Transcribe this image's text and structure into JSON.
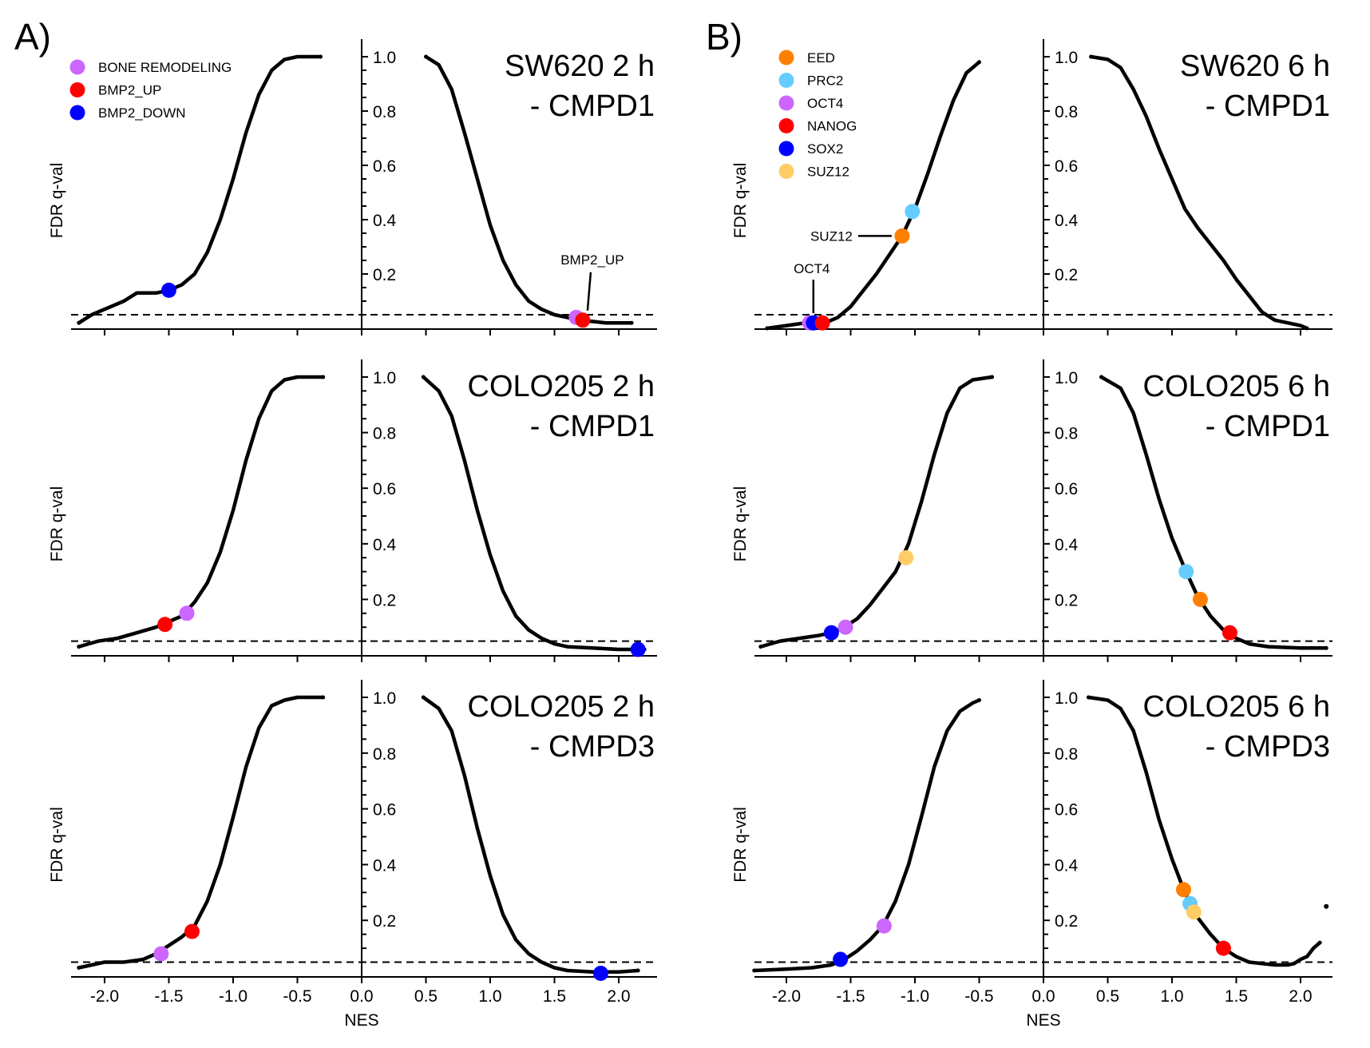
{
  "chart_data": [
    {
      "group": "A",
      "type": "scatter",
      "title": "SW620 2 h - CMPD1",
      "title_lines": [
        "SW620 2 h",
        "- CMPD1"
      ],
      "xlabel": "NES",
      "ylabel": "FDR q-val",
      "xlim": [
        -2.25,
        2.25
      ],
      "ylim": [
        0,
        1.0
      ],
      "threshold": 0.05,
      "curve": {
        "negative": [
          [
            -2.2,
            0.02
          ],
          [
            -2.1,
            0.05
          ],
          [
            -2.0,
            0.07
          ],
          [
            -1.85,
            0.1
          ],
          [
            -1.75,
            0.13
          ],
          [
            -1.6,
            0.13
          ],
          [
            -1.5,
            0.14
          ],
          [
            -1.4,
            0.16
          ],
          [
            -1.3,
            0.2
          ],
          [
            -1.2,
            0.28
          ],
          [
            -1.1,
            0.4
          ],
          [
            -1.0,
            0.55
          ],
          [
            -0.9,
            0.72
          ],
          [
            -0.8,
            0.86
          ],
          [
            -0.7,
            0.95
          ],
          [
            -0.6,
            0.99
          ],
          [
            -0.5,
            1.0
          ],
          [
            -0.32,
            1.0
          ]
        ],
        "positive": [
          [
            0.5,
            1.0
          ],
          [
            0.6,
            0.97
          ],
          [
            0.7,
            0.88
          ],
          [
            0.8,
            0.72
          ],
          [
            0.9,
            0.55
          ],
          [
            1.0,
            0.38
          ],
          [
            1.1,
            0.25
          ],
          [
            1.2,
            0.16
          ],
          [
            1.3,
            0.1
          ],
          [
            1.4,
            0.07
          ],
          [
            1.5,
            0.05
          ],
          [
            1.6,
            0.04
          ],
          [
            1.7,
            0.03
          ],
          [
            1.8,
            0.025
          ],
          [
            1.9,
            0.02
          ],
          [
            2.0,
            0.02
          ],
          [
            2.1,
            0.02
          ]
        ]
      },
      "highlights": [
        {
          "name": "BMP2_DOWN",
          "x": -1.5,
          "y": 0.14,
          "color": "#0000ff"
        },
        {
          "name": "BONE REMODELING",
          "x": 1.67,
          "y": 0.04,
          "color": "#cc66ff"
        },
        {
          "name": "BMP2_UP",
          "x": 1.72,
          "y": 0.03,
          "color": "#ff0000"
        }
      ],
      "annotations": [
        {
          "text": "BMP2_UP",
          "target": "BMP2_UP"
        }
      ],
      "legend": [
        {
          "label": "BONE REMODELING",
          "color": "#cc66ff"
        },
        {
          "label": "BMP2_UP",
          "color": "#ff0000"
        },
        {
          "label": "BMP2_DOWN",
          "color": "#0000ff"
        }
      ],
      "legend_position": "top-left"
    },
    {
      "group": "A",
      "type": "scatter",
      "title": "COLO205 2 h - CMPD1",
      "title_lines": [
        "COLO205 2 h",
        "- CMPD1"
      ],
      "xlabel": "NES",
      "ylabel": "FDR q-val",
      "xlim": [
        -2.25,
        2.25
      ],
      "ylim": [
        0,
        1.0
      ],
      "threshold": 0.05,
      "curve": {
        "negative": [
          [
            -2.2,
            0.03
          ],
          [
            -2.05,
            0.05
          ],
          [
            -1.9,
            0.06
          ],
          [
            -1.75,
            0.08
          ],
          [
            -1.6,
            0.1
          ],
          [
            -1.5,
            0.12
          ],
          [
            -1.4,
            0.14
          ],
          [
            -1.3,
            0.19
          ],
          [
            -1.2,
            0.26
          ],
          [
            -1.1,
            0.37
          ],
          [
            -1.0,
            0.52
          ],
          [
            -0.9,
            0.7
          ],
          [
            -0.8,
            0.85
          ],
          [
            -0.7,
            0.95
          ],
          [
            -0.6,
            0.99
          ],
          [
            -0.5,
            1.0
          ],
          [
            -0.3,
            1.0
          ]
        ],
        "positive": [
          [
            0.48,
            1.0
          ],
          [
            0.6,
            0.95
          ],
          [
            0.7,
            0.86
          ],
          [
            0.8,
            0.7
          ],
          [
            0.9,
            0.52
          ],
          [
            1.0,
            0.36
          ],
          [
            1.1,
            0.23
          ],
          [
            1.2,
            0.14
          ],
          [
            1.3,
            0.09
          ],
          [
            1.4,
            0.06
          ],
          [
            1.5,
            0.04
          ],
          [
            1.6,
            0.03
          ],
          [
            1.8,
            0.025
          ],
          [
            2.0,
            0.02
          ],
          [
            2.2,
            0.02
          ]
        ]
      },
      "highlights": [
        {
          "name": "BMP2_UP",
          "x": -1.53,
          "y": 0.11,
          "color": "#ff0000"
        },
        {
          "name": "BONE REMODELING",
          "x": -1.36,
          "y": 0.15,
          "color": "#cc66ff"
        },
        {
          "name": "BMP2_DOWN",
          "x": 2.15,
          "y": 0.02,
          "color": "#0000ff"
        }
      ]
    },
    {
      "group": "A",
      "type": "scatter",
      "title": "COLO205 2 h - CMPD3",
      "title_lines": [
        "COLO205 2 h",
        "- CMPD3"
      ],
      "xlabel": "NES",
      "ylabel": "FDR q-val",
      "xlim": [
        -2.25,
        2.25
      ],
      "ylim": [
        0,
        1.0
      ],
      "threshold": 0.05,
      "curve": {
        "negative": [
          [
            -2.2,
            0.03
          ],
          [
            -2.0,
            0.05
          ],
          [
            -1.85,
            0.05
          ],
          [
            -1.7,
            0.06
          ],
          [
            -1.6,
            0.08
          ],
          [
            -1.5,
            0.11
          ],
          [
            -1.4,
            0.14
          ],
          [
            -1.3,
            0.18
          ],
          [
            -1.2,
            0.27
          ],
          [
            -1.1,
            0.4
          ],
          [
            -1.0,
            0.57
          ],
          [
            -0.9,
            0.75
          ],
          [
            -0.8,
            0.89
          ],
          [
            -0.7,
            0.97
          ],
          [
            -0.6,
            0.99
          ],
          [
            -0.5,
            1.0
          ],
          [
            -0.3,
            1.0
          ]
        ],
        "positive": [
          [
            0.48,
            1.0
          ],
          [
            0.6,
            0.96
          ],
          [
            0.7,
            0.88
          ],
          [
            0.8,
            0.72
          ],
          [
            0.9,
            0.53
          ],
          [
            1.0,
            0.36
          ],
          [
            1.1,
            0.22
          ],
          [
            1.2,
            0.13
          ],
          [
            1.3,
            0.08
          ],
          [
            1.4,
            0.05
          ],
          [
            1.5,
            0.03
          ],
          [
            1.6,
            0.02
          ],
          [
            1.8,
            0.015
          ],
          [
            2.0,
            0.015
          ],
          [
            2.15,
            0.02
          ]
        ]
      },
      "highlights": [
        {
          "name": "BONE REMODELING",
          "x": -1.56,
          "y": 0.08,
          "color": "#cc66ff"
        },
        {
          "name": "BMP2_UP",
          "x": -1.32,
          "y": 0.16,
          "color": "#ff0000"
        },
        {
          "name": "BMP2_DOWN",
          "x": 1.86,
          "y": 0.01,
          "color": "#0000ff"
        }
      ]
    },
    {
      "group": "B",
      "type": "scatter",
      "title": "SW620 6 h - CMPD1",
      "title_lines": [
        "SW620 6 h",
        "- CMPD1"
      ],
      "xlabel": "NES",
      "ylabel": "FDR q-val",
      "xlim": [
        -2.25,
        2.25
      ],
      "ylim": [
        0,
        1.0
      ],
      "threshold": 0.05,
      "curve": {
        "negative": [
          [
            -2.15,
            0.0
          ],
          [
            -2.0,
            0.01
          ],
          [
            -1.85,
            0.02
          ],
          [
            -1.7,
            0.02
          ],
          [
            -1.6,
            0.04
          ],
          [
            -1.5,
            0.08
          ],
          [
            -1.4,
            0.14
          ],
          [
            -1.3,
            0.2
          ],
          [
            -1.2,
            0.27
          ],
          [
            -1.1,
            0.34
          ],
          [
            -1.0,
            0.44
          ],
          [
            -0.9,
            0.57
          ],
          [
            -0.8,
            0.71
          ],
          [
            -0.7,
            0.84
          ],
          [
            -0.6,
            0.94
          ],
          [
            -0.5,
            0.98
          ]
        ],
        "positive": [
          [
            0.37,
            1.0
          ],
          [
            0.5,
            0.99
          ],
          [
            0.6,
            0.96
          ],
          [
            0.7,
            0.88
          ],
          [
            0.8,
            0.78
          ],
          [
            0.9,
            0.66
          ],
          [
            1.0,
            0.55
          ],
          [
            1.1,
            0.44
          ],
          [
            1.2,
            0.37
          ],
          [
            1.3,
            0.31
          ],
          [
            1.4,
            0.25
          ],
          [
            1.5,
            0.18
          ],
          [
            1.6,
            0.12
          ],
          [
            1.7,
            0.06
          ],
          [
            1.8,
            0.03
          ],
          [
            1.9,
            0.02
          ],
          [
            2.0,
            0.01
          ],
          [
            2.05,
            0.0
          ]
        ]
      },
      "highlights": [
        {
          "name": "OCT4",
          "x": -1.82,
          "y": 0.02,
          "color": "#cc66ff"
        },
        {
          "name": "SOX2",
          "x": -1.79,
          "y": 0.02,
          "color": "#0000ff"
        },
        {
          "name": "NANOG",
          "x": -1.72,
          "y": 0.02,
          "color": "#ff0000"
        },
        {
          "name": "EED",
          "x": -1.1,
          "y": 0.34,
          "color": "#ff8000"
        },
        {
          "name": "PRC2",
          "x": -1.02,
          "y": 0.43,
          "color": "#66ccff"
        }
      ],
      "annotations": [
        {
          "text": "SUZ12",
          "target": "EED"
        },
        {
          "text": "OCT4",
          "target": "SOX2"
        }
      ],
      "legend": [
        {
          "label": "EED",
          "color": "#ff8000"
        },
        {
          "label": "PRC2",
          "color": "#66ccff"
        },
        {
          "label": "OCT4",
          "color": "#cc66ff"
        },
        {
          "label": "NANOG",
          "color": "#ff0000"
        },
        {
          "label": "SOX2",
          "color": "#0000ff"
        },
        {
          "label": "SUZ12",
          "color": "#ffcc66"
        }
      ],
      "legend_position": "top-left"
    },
    {
      "group": "B",
      "type": "scatter",
      "title": "COLO205 6 h - CMPD1",
      "title_lines": [
        "COLO205 6 h",
        "- CMPD1"
      ],
      "xlabel": "NES",
      "ylabel": "FDR q-val",
      "xlim": [
        -2.25,
        2.25
      ],
      "ylim": [
        0,
        1.0
      ],
      "threshold": 0.05,
      "curve": {
        "negative": [
          [
            -2.2,
            0.03
          ],
          [
            -2.05,
            0.05
          ],
          [
            -1.9,
            0.06
          ],
          [
            -1.75,
            0.07
          ],
          [
            -1.65,
            0.08
          ],
          [
            -1.55,
            0.1
          ],
          [
            -1.45,
            0.13
          ],
          [
            -1.35,
            0.18
          ],
          [
            -1.25,
            0.24
          ],
          [
            -1.15,
            0.3
          ],
          [
            -1.05,
            0.4
          ],
          [
            -0.95,
            0.55
          ],
          [
            -0.85,
            0.72
          ],
          [
            -0.75,
            0.87
          ],
          [
            -0.65,
            0.96
          ],
          [
            -0.55,
            0.99
          ],
          [
            -0.4,
            1.0
          ]
        ],
        "positive": [
          [
            0.45,
            1.0
          ],
          [
            0.6,
            0.96
          ],
          [
            0.7,
            0.87
          ],
          [
            0.8,
            0.72
          ],
          [
            0.9,
            0.56
          ],
          [
            1.0,
            0.42
          ],
          [
            1.1,
            0.31
          ],
          [
            1.2,
            0.21
          ],
          [
            1.3,
            0.14
          ],
          [
            1.4,
            0.09
          ],
          [
            1.5,
            0.06
          ],
          [
            1.6,
            0.04
          ],
          [
            1.75,
            0.03
          ],
          [
            2.0,
            0.025
          ],
          [
            2.2,
            0.025
          ]
        ]
      },
      "highlights": [
        {
          "name": "SOX2",
          "x": -1.65,
          "y": 0.08,
          "color": "#0000ff"
        },
        {
          "name": "OCT4",
          "x": -1.54,
          "y": 0.1,
          "color": "#cc66ff"
        },
        {
          "name": "SUZ12",
          "x": -1.07,
          "y": 0.35,
          "color": "#ffcc66"
        },
        {
          "name": "PRC2",
          "x": 1.11,
          "y": 0.3,
          "color": "#66ccff"
        },
        {
          "name": "EED",
          "x": 1.22,
          "y": 0.2,
          "color": "#ff8000"
        },
        {
          "name": "NANOG",
          "x": 1.45,
          "y": 0.08,
          "color": "#ff0000"
        }
      ]
    },
    {
      "group": "B",
      "type": "scatter",
      "title": "COLO205 6 h - CMPD3",
      "title_lines": [
        "COLO205 6 h",
        "- CMPD3"
      ],
      "xlabel": "NES",
      "ylabel": "FDR q-val",
      "xlim": [
        -2.25,
        2.25
      ],
      "ylim": [
        0,
        1.0
      ],
      "threshold": 0.05,
      "curve": {
        "negative": [
          [
            -2.25,
            0.02
          ],
          [
            -2.0,
            0.025
          ],
          [
            -1.8,
            0.03
          ],
          [
            -1.65,
            0.04
          ],
          [
            -1.55,
            0.06
          ],
          [
            -1.45,
            0.09
          ],
          [
            -1.35,
            0.13
          ],
          [
            -1.25,
            0.18
          ],
          [
            -1.15,
            0.27
          ],
          [
            -1.05,
            0.4
          ],
          [
            -0.95,
            0.57
          ],
          [
            -0.85,
            0.75
          ],
          [
            -0.75,
            0.88
          ],
          [
            -0.65,
            0.95
          ],
          [
            -0.55,
            0.98
          ],
          [
            -0.5,
            0.99
          ]
        ],
        "positive": [
          [
            0.35,
            1.0
          ],
          [
            0.5,
            0.99
          ],
          [
            0.6,
            0.96
          ],
          [
            0.7,
            0.88
          ],
          [
            0.8,
            0.73
          ],
          [
            0.9,
            0.56
          ],
          [
            1.0,
            0.42
          ],
          [
            1.1,
            0.3
          ],
          [
            1.2,
            0.21
          ],
          [
            1.3,
            0.15
          ],
          [
            1.4,
            0.1
          ],
          [
            1.5,
            0.07
          ],
          [
            1.6,
            0.05
          ],
          [
            1.7,
            0.045
          ],
          [
            1.8,
            0.04
          ],
          [
            1.9,
            0.04
          ],
          [
            1.95,
            0.045
          ],
          [
            2.0,
            0.06
          ],
          [
            2.05,
            0.07
          ],
          [
            2.1,
            0.1
          ],
          [
            2.15,
            0.12
          ]
        ]
      },
      "outliers": [
        [
          2.2,
          0.25
        ]
      ],
      "highlights": [
        {
          "name": "SOX2",
          "x": -1.58,
          "y": 0.06,
          "color": "#0000ff"
        },
        {
          "name": "OCT4",
          "x": -1.24,
          "y": 0.18,
          "color": "#cc66ff"
        },
        {
          "name": "EED",
          "x": 1.09,
          "y": 0.31,
          "color": "#ff8000"
        },
        {
          "name": "PRC2",
          "x": 1.14,
          "y": 0.26,
          "color": "#66ccff"
        },
        {
          "name": "SUZ12",
          "x": 1.17,
          "y": 0.23,
          "color": "#ffcc66"
        },
        {
          "name": "NANOG",
          "x": 1.4,
          "y": 0.1,
          "color": "#ff0000"
        }
      ]
    }
  ],
  "figure": {
    "panel_letters": [
      "A)",
      "B)"
    ],
    "x_ticks": [
      "-2.0",
      "-1.5",
      "-1.0",
      "-0.5",
      "0.0",
      "0.5",
      "1.0",
      "1.5",
      "2.0"
    ],
    "x_tick_values": [
      -2.0,
      -1.5,
      -1.0,
      -0.5,
      0.0,
      0.5,
      1.0,
      1.5,
      2.0
    ],
    "y_ticks": [
      "0.2",
      "0.4",
      "0.6",
      "0.8",
      "1.0"
    ],
    "y_tick_values": [
      0.2,
      0.4,
      0.6,
      0.8,
      1.0
    ],
    "xlabel": "NES",
    "ylabel": "FDR q-val"
  }
}
